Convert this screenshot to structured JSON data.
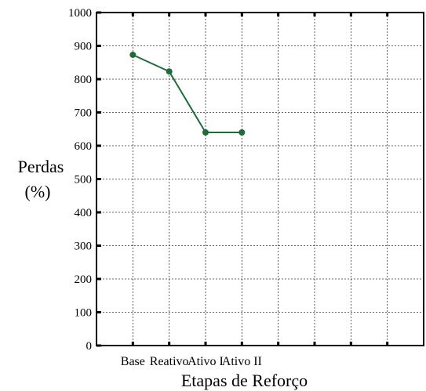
{
  "chart_data": {
    "type": "line",
    "title": "",
    "xlabel": "Etapas de Reforço",
    "ylabel": [
      "Perdas",
      "(%)"
    ],
    "categories": [
      "Base",
      "Reativo",
      "Ativo I",
      "Ativo II"
    ],
    "x_slots": 9,
    "ylim": [
      0,
      1000
    ],
    "yticks": [
      0,
      100,
      200,
      300,
      400,
      500,
      600,
      700,
      800,
      900,
      1000
    ],
    "grid": true,
    "series": [
      {
        "values": [
          873,
          823,
          640,
          640
        ],
        "color": "#1f6b3a"
      }
    ]
  }
}
